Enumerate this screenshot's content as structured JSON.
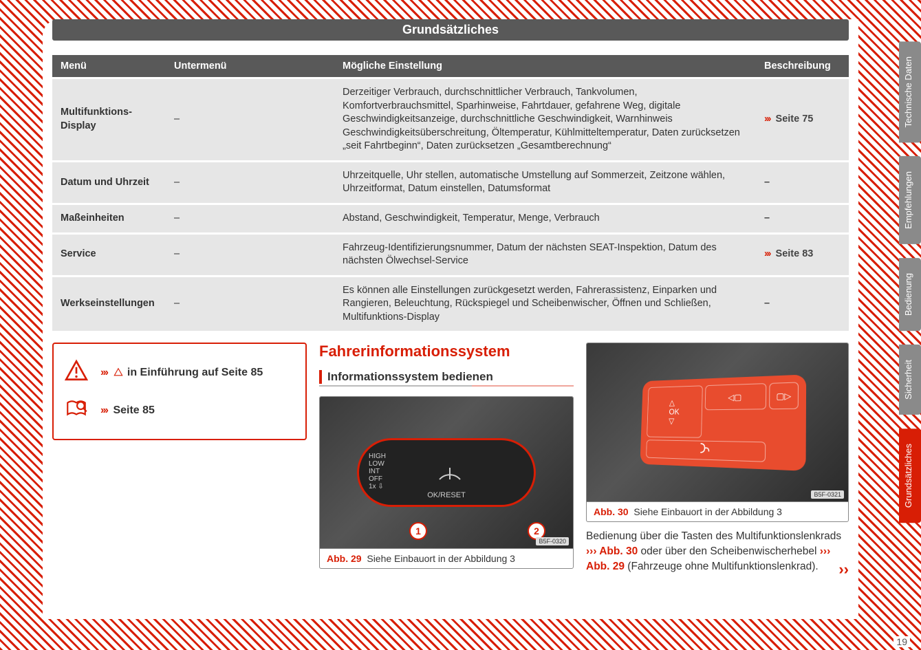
{
  "page_title": "Grundsätzliches",
  "page_number": "19",
  "table": {
    "headers": [
      "Menü",
      "Untermenü",
      "Mögliche Einstellung",
      "Beschreibung"
    ],
    "rows": [
      {
        "menu": "Multifunktions-Display",
        "sub": "–",
        "setting": "Derzeitiger Verbrauch, durchschnittlicher Verbrauch, Tankvolumen, Komfortverbrauchsmittel, Sparhinweise, Fahrtdauer, gefahrene Weg, digitale Geschwindigkeitsanzeige, durchschnittliche Geschwindigkeit, Warnhinweis Geschwindigkeitsüberschreitung, Öltemperatur, Kühlmitteltemperatur, Daten zurücksetzen „seit Fahrtbeginn“, Daten zurücksetzen „Gesamtberechnung“",
        "desc": "Seite 75",
        "desc_has_ref": true
      },
      {
        "menu": "Datum und Uhrzeit",
        "sub": "–",
        "setting": "Uhrzeitquelle, Uhr stellen, automatische Umstellung auf Sommerzeit, Zeitzone wählen, Uhrzeitformat, Datum einstellen, Datumsformat",
        "desc": "–",
        "desc_has_ref": false
      },
      {
        "menu": "Maßeinheiten",
        "sub": "–",
        "setting": "Abstand, Geschwindigkeit, Temperatur, Menge, Verbrauch",
        "desc": "–",
        "desc_has_ref": false
      },
      {
        "menu": "Service",
        "sub": "–",
        "setting": "Fahrzeug-Identifizierungsnummer, Datum der nächsten SEAT-Inspektion, Datum des nächsten Ölwechsel-Service",
        "desc": "Seite 83",
        "desc_has_ref": true
      },
      {
        "menu": "Werkseinstellungen",
        "sub": "–",
        "setting": "Es können alle Einstellungen zurückgesetzt werden, Fahrerassistenz, Einparken und Rangieren, Beleuchtung, Rückspiegel und Scheibenwischer, Öffnen und Schließen, Multifunktions-Display",
        "desc": "–",
        "desc_has_ref": false
      }
    ]
  },
  "warn_box": {
    "line1_prefix": "›››",
    "line1_text": " in Einführung auf Seite 85",
    "line2_prefix": "›››",
    "line2_text": "Seite 85"
  },
  "section_heading": "Fahrerinformationssystem",
  "subsection_heading": "Informationssystem bedienen",
  "fig29": {
    "label": "Abb. 29",
    "caption": "Siehe Einbauort in der Abbildung 3",
    "code": "B5F-0320",
    "callouts": [
      "1",
      "2"
    ]
  },
  "fig30": {
    "label": "Abb. 30",
    "caption": "Siehe Einbauort in der Abbildung 3",
    "code": "B5F-0321"
  },
  "body_paragraph": {
    "t1": "Bedienung über die Tasten des Multifunktionslenkrads ",
    "ref1": "››› Abb. 30",
    "t2": " oder über den Scheibenwischerhebel ",
    "ref2": "››› Abb. 29",
    "t3": " (Fahrzeuge ohne Multifunktionslenkrad)."
  },
  "continue_marker": "››",
  "tabs": [
    {
      "label": "Technische Daten",
      "active": false
    },
    {
      "label": "Empfehlungen",
      "active": false
    },
    {
      "label": "Bedienung",
      "active": false
    },
    {
      "label": "Sicherheit",
      "active": false
    },
    {
      "label": "Grundsätzliches",
      "active": true
    }
  ],
  "colors": {
    "accent": "#d81e05",
    "header_bg": "#595959",
    "row_bg": "#e6e6e6",
    "tab_bg": "#8a8a8a"
  }
}
